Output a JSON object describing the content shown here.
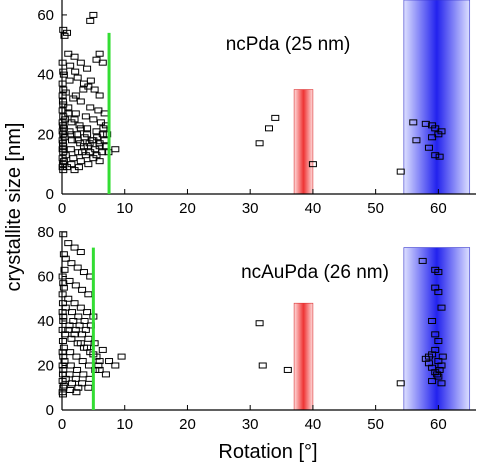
{
  "shared": {
    "xlabel": "Rotation [°]",
    "ylabel": "crystallite  size [nm]"
  },
  "colors": {
    "green_line": "#33dd33",
    "red_band": "#ee3333",
    "blue_band": "#2222ee",
    "marker": "#000000"
  },
  "chart_data": [
    {
      "type": "scatter",
      "title": "ncPda (25 nm)",
      "xlim": [
        0,
        66
      ],
      "ylim": [
        0,
        65
      ],
      "xticks": [
        "0",
        "10",
        "20",
        "30",
        "40",
        "50",
        "60"
      ],
      "yticks": [
        "0",
        "20",
        "40",
        "60"
      ],
      "x_tick_values": [
        0,
        10,
        20,
        30,
        40,
        50,
        60
      ],
      "y_tick_values": [
        0,
        20,
        40,
        60
      ],
      "green_line_x": 7.5,
      "green_line_range": [
        0,
        54
      ],
      "red_band": {
        "x": [
          37,
          40
        ],
        "y": [
          0,
          35
        ]
      },
      "blue_band": {
        "x": [
          54.5,
          65
        ],
        "y": [
          0,
          65
        ]
      },
      "points": [
        [
          0.2,
          55
        ],
        [
          0.4,
          53
        ],
        [
          0.8,
          54
        ],
        [
          4.5,
          58
        ],
        [
          5,
          60
        ],
        [
          6,
          47
        ],
        [
          5.5,
          45
        ],
        [
          6.5,
          44
        ],
        [
          1,
          47
        ],
        [
          2,
          46
        ],
        [
          3,
          44
        ],
        [
          4,
          42
        ],
        [
          0.3,
          40
        ],
        [
          1.2,
          38
        ],
        [
          2.5,
          39
        ],
        [
          3.5,
          37
        ],
        [
          4.2,
          36
        ],
        [
          5.2,
          35
        ],
        [
          6,
          33
        ],
        [
          0.6,
          34
        ],
        [
          1.8,
          32
        ],
        [
          3,
          31
        ],
        [
          4.5,
          29
        ],
        [
          5.8,
          28
        ],
        [
          6.8,
          27
        ],
        [
          0.2,
          30
        ],
        [
          1,
          29
        ],
        [
          2.2,
          27
        ],
        [
          3.8,
          26
        ],
        [
          5,
          25
        ],
        [
          6.2,
          24
        ],
        [
          7,
          23
        ],
        [
          0.5,
          25
        ],
        [
          1.5,
          24
        ],
        [
          2.8,
          23
        ],
        [
          4,
          22
        ],
        [
          5.5,
          21
        ],
        [
          6.5,
          20
        ],
        [
          0.3,
          22
        ],
        [
          1.2,
          21
        ],
        [
          2.4,
          20
        ],
        [
          3.6,
          19
        ],
        [
          4.8,
          18
        ],
        [
          6,
          17
        ],
        [
          7,
          16
        ],
        [
          8.5,
          15
        ],
        [
          0.4,
          19
        ],
        [
          1.6,
          18
        ],
        [
          2.9,
          17
        ],
        [
          4.1,
          16
        ],
        [
          5.3,
          15
        ],
        [
          6.4,
          14
        ],
        [
          0.2,
          16
        ],
        [
          1.4,
          15
        ],
        [
          2.6,
          14
        ],
        [
          3.8,
          13
        ],
        [
          5,
          12
        ],
        [
          6,
          11
        ],
        [
          0.6,
          13
        ],
        [
          1.8,
          12
        ],
        [
          3,
          11
        ],
        [
          4.2,
          10
        ],
        [
          0.3,
          11
        ],
        [
          1.5,
          10
        ],
        [
          2.7,
          9
        ],
        [
          0.8,
          9
        ],
        [
          2,
          8
        ],
        [
          3.2,
          14
        ],
        [
          4.4,
          17
        ],
        [
          5.6,
          19
        ],
        [
          0.1,
          44
        ],
        [
          0.2,
          41
        ],
        [
          0.1,
          37
        ],
        [
          0.2,
          35
        ],
        [
          0.1,
          33
        ],
        [
          0.15,
          31
        ],
        [
          0.1,
          28
        ],
        [
          0.2,
          26
        ],
        [
          0.1,
          24
        ],
        [
          0.15,
          23
        ],
        [
          0.1,
          21
        ],
        [
          0.2,
          20
        ],
        [
          0.1,
          18
        ],
        [
          0.15,
          17
        ],
        [
          0.1,
          15
        ],
        [
          0.2,
          14
        ],
        [
          0.1,
          12
        ],
        [
          0.15,
          10
        ],
        [
          0.1,
          9
        ],
        [
          0.2,
          8
        ],
        [
          1,
          27
        ],
        [
          2,
          25
        ],
        [
          3,
          22
        ],
        [
          4,
          20
        ],
        [
          5,
          18
        ],
        [
          6,
          16
        ],
        [
          1.5,
          20
        ],
        [
          2.5,
          18
        ],
        [
          3.5,
          16
        ],
        [
          4.5,
          14
        ],
        [
          5.5,
          13
        ],
        [
          2.2,
          33
        ],
        [
          3.4,
          35
        ],
        [
          4.6,
          38
        ],
        [
          1.3,
          43
        ],
        [
          2.1,
          41
        ],
        [
          6.8,
          18
        ],
        [
          7.2,
          20
        ],
        [
          6.6,
          22
        ],
        [
          7.4,
          14
        ],
        [
          31.5,
          17
        ],
        [
          33,
          22
        ],
        [
          34,
          25.5
        ],
        [
          40,
          10
        ],
        [
          54,
          7.5
        ],
        [
          56,
          24
        ],
        [
          56.5,
          18
        ],
        [
          58,
          23.5
        ],
        [
          59,
          23
        ],
        [
          59.5,
          22
        ],
        [
          60,
          20
        ],
        [
          58.5,
          15.5
        ],
        [
          59.5,
          13
        ],
        [
          60.2,
          12.5
        ],
        [
          59,
          19
        ],
        [
          60.5,
          21
        ]
      ]
    },
    {
      "type": "scatter",
      "title": "ncAuPda (26 nm)",
      "xlim": [
        0,
        66
      ],
      "ylim": [
        0,
        80
      ],
      "xticks": [
        "0",
        "10",
        "20",
        "30",
        "40",
        "50",
        "60"
      ],
      "yticks": [
        "0",
        "20",
        "40",
        "60",
        "80"
      ],
      "x_tick_values": [
        0,
        10,
        20,
        30,
        40,
        50,
        60
      ],
      "y_tick_values": [
        0,
        20,
        40,
        60,
        80
      ],
      "green_line_x": 5,
      "green_line_range": [
        0,
        73
      ],
      "red_band": {
        "x": [
          37,
          40
        ],
        "y": [
          0,
          48
        ]
      },
      "blue_band": {
        "x": [
          54.5,
          65
        ],
        "y": [
          0,
          73
        ]
      },
      "points": [
        [
          0.2,
          79
        ],
        [
          0.3,
          70
        ],
        [
          0.6,
          68
        ],
        [
          1,
          75
        ],
        [
          2,
          73
        ],
        [
          3,
          71
        ],
        [
          1.5,
          66
        ],
        [
          2.5,
          64
        ],
        [
          3.5,
          62
        ],
        [
          4.5,
          60
        ],
        [
          0.4,
          63
        ],
        [
          1.2,
          58
        ],
        [
          2.2,
          56
        ],
        [
          3.2,
          54
        ],
        [
          4.2,
          52
        ],
        [
          0.3,
          55
        ],
        [
          1,
          50
        ],
        [
          2,
          48
        ],
        [
          3,
          46
        ],
        [
          4,
          44
        ],
        [
          5,
          42
        ],
        [
          0.6,
          46
        ],
        [
          1.6,
          44
        ],
        [
          2.6,
          42
        ],
        [
          3.6,
          40
        ],
        [
          4.6,
          38
        ],
        [
          0.2,
          40
        ],
        [
          1.2,
          38
        ],
        [
          2.2,
          36
        ],
        [
          3.2,
          34
        ],
        [
          4.2,
          32
        ],
        [
          5.2,
          30
        ],
        [
          0.5,
          34
        ],
        [
          1.5,
          32
        ],
        [
          2.5,
          30
        ],
        [
          3.5,
          28
        ],
        [
          4.5,
          26
        ],
        [
          5.5,
          24
        ],
        [
          6.5,
          27
        ],
        [
          7.5,
          22
        ],
        [
          8.5,
          20
        ],
        [
          9.5,
          24
        ],
        [
          0.3,
          28
        ],
        [
          1.3,
          26
        ],
        [
          2.3,
          24
        ],
        [
          3.3,
          22
        ],
        [
          4.3,
          20
        ],
        [
          5.3,
          18
        ],
        [
          0.4,
          22
        ],
        [
          1.4,
          20
        ],
        [
          2.4,
          18
        ],
        [
          3.4,
          16
        ],
        [
          4.4,
          14
        ],
        [
          0.2,
          18
        ],
        [
          1.2,
          16
        ],
        [
          2.2,
          14
        ],
        [
          3.2,
          12
        ],
        [
          4.2,
          10
        ],
        [
          0.6,
          14
        ],
        [
          1.6,
          12
        ],
        [
          2.6,
          10
        ],
        [
          0.3,
          11
        ],
        [
          1.3,
          9
        ],
        [
          2.3,
          8
        ],
        [
          0.1,
          60
        ],
        [
          0.2,
          57
        ],
        [
          0.1,
          52
        ],
        [
          0.15,
          48
        ],
        [
          0.1,
          44
        ],
        [
          0.2,
          42
        ],
        [
          0.1,
          36
        ],
        [
          0.15,
          31
        ],
        [
          0.1,
          26
        ],
        [
          0.2,
          24
        ],
        [
          0.1,
          20
        ],
        [
          0.15,
          16
        ],
        [
          0.1,
          13
        ],
        [
          0.2,
          10
        ],
        [
          0.1,
          8
        ],
        [
          0.15,
          7
        ],
        [
          1,
          36
        ],
        [
          2,
          34
        ],
        [
          3,
          30
        ],
        [
          4,
          28
        ],
        [
          5,
          25
        ],
        [
          6,
          22
        ],
        [
          1.8,
          40
        ],
        [
          2.8,
          38
        ],
        [
          3.8,
          36
        ],
        [
          6,
          18
        ],
        [
          7,
          16
        ],
        [
          5.8,
          20
        ],
        [
          31.5,
          39
        ],
        [
          32,
          20
        ],
        [
          36,
          18
        ],
        [
          54,
          12
        ],
        [
          57.5,
          67
        ],
        [
          58,
          23
        ],
        [
          58.5,
          24
        ],
        [
          59,
          25
        ],
        [
          59.5,
          63
        ],
        [
          60,
          62
        ],
        [
          59.5,
          55
        ],
        [
          60,
          53
        ],
        [
          60.5,
          46
        ],
        [
          59,
          40
        ],
        [
          59.5,
          34
        ],
        [
          60,
          31
        ],
        [
          59.5,
          27
        ],
        [
          60,
          22
        ],
        [
          59,
          19
        ],
        [
          60.5,
          20
        ],
        [
          59.5,
          17
        ],
        [
          60,
          15
        ],
        [
          59,
          13
        ],
        [
          60.5,
          12
        ],
        [
          58.5,
          21
        ],
        [
          60.2,
          18
        ],
        [
          59.8,
          16
        ],
        [
          60.7,
          24
        ]
      ]
    }
  ]
}
